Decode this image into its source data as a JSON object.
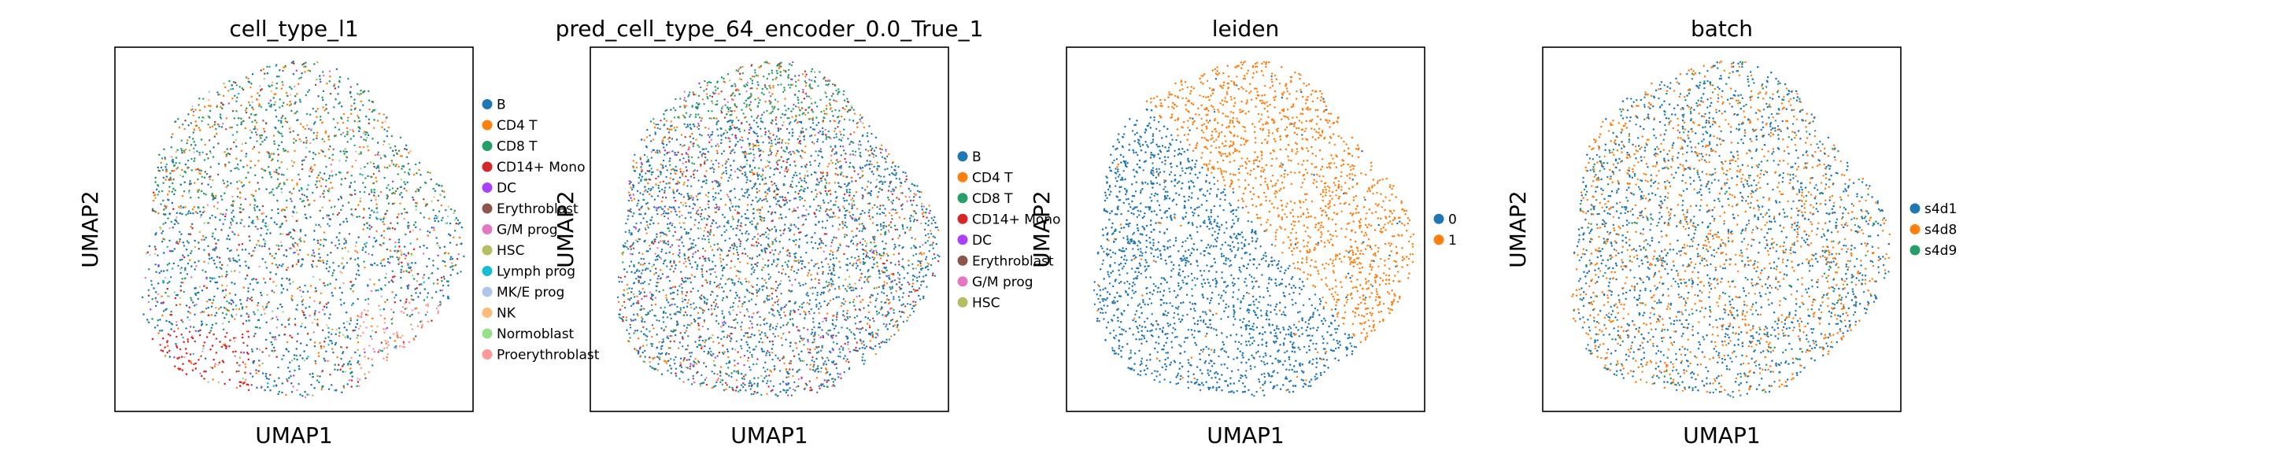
{
  "chart_data": [
    {
      "type": "scatter",
      "title": "cell_type_l1",
      "xlabel": "UMAP1",
      "ylabel": "UMAP2",
      "legend_placement": "right",
      "categories": [
        "B",
        "CD4 T",
        "CD8 T",
        "CD14+ Mono",
        "DC",
        "Erythroblast",
        "G/M prog",
        "HSC",
        "Lymph prog",
        "MK/E prog",
        "NK",
        "Normoblast",
        "Proerythroblast"
      ],
      "colors": [
        "#1f77b4",
        "#ff7f0e",
        "#279e68",
        "#d62728",
        "#aa40fc",
        "#8c564b",
        "#e377c2",
        "#b5bd61",
        "#17becf",
        "#aec7e8",
        "#ffbb78",
        "#98df8a",
        "#ff9896"
      ]
    },
    {
      "type": "scatter",
      "title": "pred_cell_type_64_encoder_0.0_True_1",
      "xlabel": "UMAP1",
      "ylabel": "UMAP2",
      "legend_placement": "right",
      "categories": [
        "B",
        "CD4 T",
        "CD8 T",
        "CD14+ Mono",
        "DC",
        "Erythroblast",
        "G/M prog",
        "HSC"
      ],
      "colors": [
        "#1f77b4",
        "#ff7f0e",
        "#279e68",
        "#d62728",
        "#aa40fc",
        "#8c564b",
        "#e377c2",
        "#b5bd61"
      ]
    },
    {
      "type": "scatter",
      "title": "leiden",
      "xlabel": "UMAP1",
      "ylabel": "UMAP2",
      "legend_placement": "right",
      "categories": [
        "0",
        "1"
      ],
      "colors": [
        "#1f77b4",
        "#ff7f0e"
      ]
    },
    {
      "type": "scatter",
      "title": "batch",
      "xlabel": "UMAP1",
      "ylabel": "UMAP2",
      "legend_placement": "right",
      "categories": [
        "s4d1",
        "s4d8",
        "s4d9"
      ],
      "colors": [
        "#1f77b4",
        "#ff7f0e",
        "#279e68"
      ]
    }
  ]
}
